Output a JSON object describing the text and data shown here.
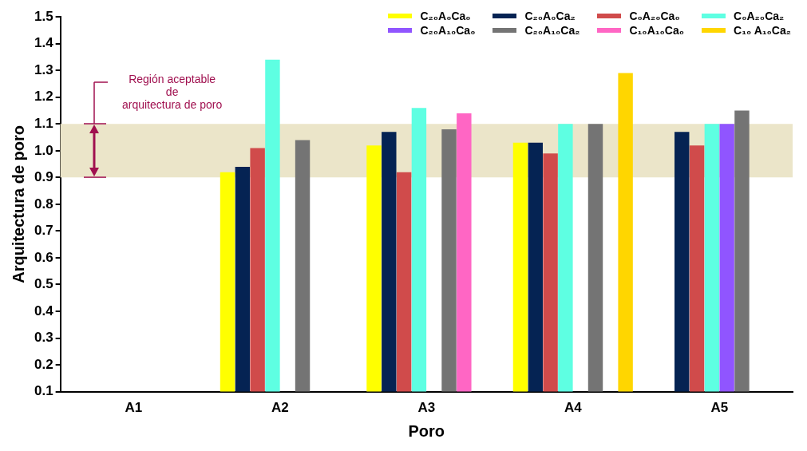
{
  "chart_data": {
    "type": "bar",
    "xlabel": "Poro",
    "ylabel": "Arquitectura de poro",
    "categories": [
      "A1",
      "A2",
      "A3",
      "A4",
      "A5"
    ],
    "series": [
      {
        "name": "C₂₀A₀Ca₀",
        "color": "#ffff00",
        "values": [
          null,
          0.92,
          1.02,
          1.03,
          null
        ]
      },
      {
        "name": "C₂₀A₀Ca₂",
        "color": "#052353",
        "values": [
          null,
          0.94,
          1.07,
          1.03,
          1.07
        ]
      },
      {
        "name": "C₀A₂₀Ca₀",
        "color": "#d04b4b",
        "values": [
          null,
          1.01,
          0.92,
          0.99,
          1.02
        ]
      },
      {
        "name": "C₀A₂₀Ca₂",
        "color": "#5effe2",
        "values": [
          null,
          1.34,
          1.16,
          1.1,
          1.1
        ]
      },
      {
        "name": "C₂₀A₁₀Ca₀",
        "color": "#9055ff",
        "values": [
          null,
          null,
          null,
          null,
          1.1
        ]
      },
      {
        "name": "C₂₀A₁₀Ca₂",
        "color": "#747474",
        "values": [
          null,
          1.04,
          1.08,
          1.1,
          1.15
        ]
      },
      {
        "name": "C₁₀A₁₀Ca₀",
        "color": "#ff66c4",
        "values": [
          null,
          null,
          1.14,
          null,
          null
        ]
      },
      {
        "name": "C₁₀ A₁₀Ca₂",
        "color": "#ffd600",
        "values": [
          null,
          null,
          null,
          1.29,
          null
        ]
      }
    ],
    "ylim": [
      0.1,
      1.5
    ],
    "yticks": [
      0.1,
      0.2,
      0.3,
      0.4,
      0.5,
      0.6,
      0.7,
      0.8,
      0.9,
      {
        "value": 1,
        "label": "1.0"
      },
      1.1,
      1.2,
      1.3,
      1.4,
      1.5
    ],
    "bands": [
      {
        "axis": "y",
        "from": 0.9,
        "to": 1.1,
        "label": "Región aceptable\nde\narquitectura de poro",
        "color": "#ebe5c9"
      }
    ],
    "grid": false,
    "legend": "top right"
  }
}
